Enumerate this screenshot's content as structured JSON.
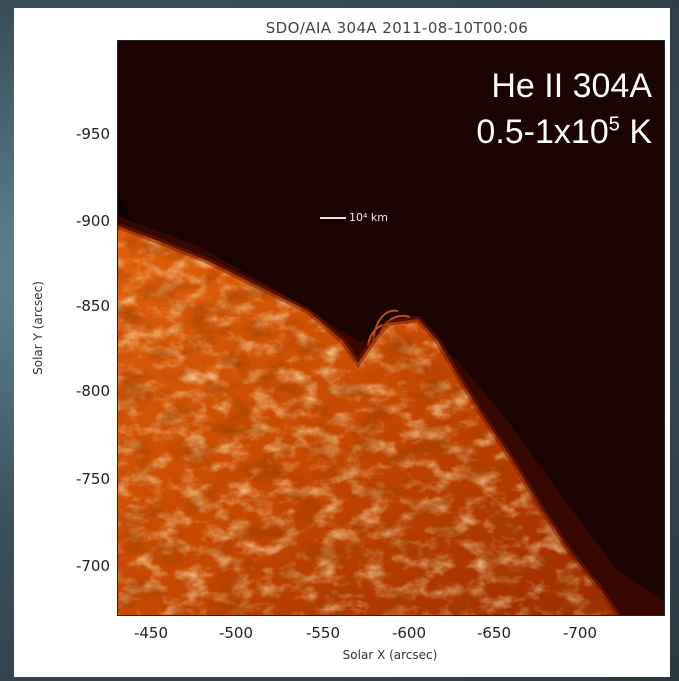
{
  "figure": {
    "title": "SDO/AIA 304A 2011-08-10T00:06",
    "overlay_line1": "He II 304A",
    "overlay_line2_prefix": "0.5-1x10",
    "overlay_line2_exp": "5",
    "overlay_line2_suffix": " K",
    "scalebar_label": "10⁴ km",
    "xlabel": "Solar X (arcsec)",
    "ylabel": "Solar Y (arcsec)",
    "yticks": [
      "-950",
      "-900",
      "-850",
      "-800",
      "-750",
      "-700"
    ],
    "xticks": [
      "-450",
      "-500",
      "-550",
      "-600",
      "-650",
      "-700"
    ],
    "colors": {
      "background": "#0b0100",
      "disk_dark": "#5a1100",
      "disk_mid": "#c74a00",
      "disk_bright": "#ffd79a"
    }
  }
}
